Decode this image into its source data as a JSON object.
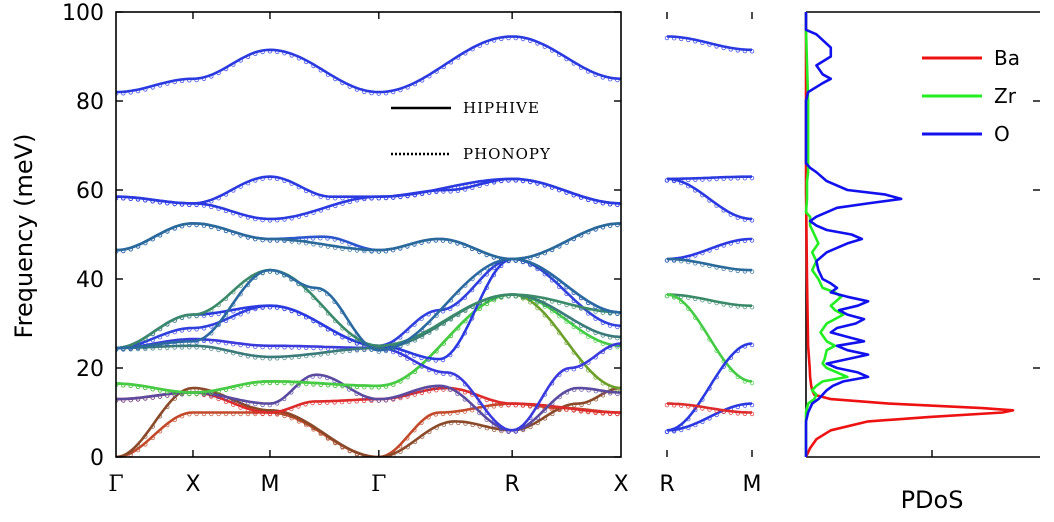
{
  "chart_data": [
    {
      "type": "line",
      "panel": "dispersion",
      "ylabel": "Frequency (meV)",
      "ylim": [
        0,
        100
      ],
      "yticks": [
        0,
        20,
        40,
        60,
        80,
        100
      ],
      "kpoints": [
        {
          "x": 0.0,
          "label": "Γ"
        },
        {
          "x": 1.0,
          "label": "X"
        },
        {
          "x": 2.0,
          "label": "M"
        },
        {
          "x": 3.414,
          "label": "Γ"
        },
        {
          "x": 5.146,
          "label": "R"
        },
        {
          "x": 6.56,
          "label": "X"
        }
      ],
      "legend": [
        {
          "name": "HIPHIVE",
          "style": "solid"
        },
        {
          "name": "PHONOPY",
          "style": "dotted"
        }
      ],
      "band_colors": {
        "low": "#ff1a1a",
        "mid": "#22cc22",
        "high": "#2222ee"
      },
      "branches": [
        {
          "nodes": [
            [
              0,
              0
            ],
            [
              1,
              10
            ],
            [
              2,
              10
            ],
            [
              3.414,
              0
            ],
            [
              4.2,
              10
            ],
            [
              5.146,
              12
            ],
            [
              5.8,
              11
            ],
            [
              6.56,
              10
            ]
          ],
          "color": "#c24a2a"
        },
        {
          "nodes": [
            [
              0,
              0
            ],
            [
              1,
              15.5
            ],
            [
              2,
              10.5
            ],
            [
              3.414,
              0
            ],
            [
              4.4,
              8
            ],
            [
              5.146,
              6
            ],
            [
              6.0,
              12
            ],
            [
              6.56,
              15.5
            ]
          ],
          "color": "#8a4a2a"
        },
        {
          "nodes": [
            [
              0,
              13
            ],
            [
              1,
              14.5
            ],
            [
              2,
              10
            ],
            [
              2.6,
              12.5
            ],
            [
              3.414,
              13
            ],
            [
              4.3,
              15.5
            ],
            [
              5.146,
              12
            ],
            [
              6.56,
              10
            ]
          ],
          "color": "#dd2a2a"
        },
        {
          "nodes": [
            [
              0,
              13
            ],
            [
              1,
              14.5
            ],
            [
              2,
              12
            ],
            [
              2.6,
              18.5
            ],
            [
              3.414,
              13
            ],
            [
              4.2,
              16
            ],
            [
              5.146,
              6
            ],
            [
              6.0,
              15.5
            ],
            [
              6.56,
              14.5
            ]
          ],
          "color": "#5a4aa0"
        },
        {
          "nodes": [
            [
              0,
              16.5
            ],
            [
              1,
              14.5
            ],
            [
              2,
              17
            ],
            [
              3.414,
              16
            ],
            [
              5.146,
              36.5
            ],
            [
              6.56,
              15.5
            ]
          ],
          "color": "#6aa02a"
        },
        {
          "nodes": [
            [
              0,
              16.5
            ],
            [
              1,
              14.5
            ],
            [
              2,
              17
            ],
            [
              3.414,
              16
            ],
            [
              5.146,
              36.5
            ],
            [
              6.56,
              25
            ]
          ],
          "color": "#44cc44"
        },
        {
          "nodes": [
            [
              0,
              24.5
            ],
            [
              1,
              26.5
            ],
            [
              2,
              25
            ],
            [
              3.414,
              24.5
            ],
            [
              4.3,
              19
            ],
            [
              5.146,
              6
            ],
            [
              5.9,
              20
            ],
            [
              6.56,
              25.5
            ]
          ],
          "color": "#3a3add"
        },
        {
          "nodes": [
            [
              0,
              24.5
            ],
            [
              1,
              25
            ],
            [
              2,
              22.5
            ],
            [
              3.414,
              24.5
            ],
            [
              5.146,
              36.5
            ],
            [
              6.56,
              27
            ]
          ],
          "color": "#3a7a7a"
        },
        {
          "nodes": [
            [
              0,
              24.5
            ],
            [
              1,
              29
            ],
            [
              2,
              34
            ],
            [
              3.414,
              25
            ],
            [
              4.2,
              33
            ],
            [
              5.146,
              44.5
            ],
            [
              6.56,
              29.5
            ]
          ],
          "color": "#3040dd"
        },
        {
          "nodes": [
            [
              0,
              24.5
            ],
            [
              1,
              32
            ],
            [
              2,
              34
            ],
            [
              3.414,
              25
            ],
            [
              4.2,
              22
            ],
            [
              5.146,
              44.5
            ],
            [
              6.56,
              32.5
            ]
          ],
          "color": "#2a3ae0"
        },
        {
          "nodes": [
            [
              0,
              24.5
            ],
            [
              1,
              32
            ],
            [
              2,
              42
            ],
            [
              3.414,
              25
            ],
            [
              5.146,
              36.5
            ],
            [
              6.56,
              32.5
            ]
          ],
          "color": "#3a8a6a"
        },
        {
          "nodes": [
            [
              0,
              24.5
            ],
            [
              1,
              26
            ],
            [
              2,
              42
            ],
            [
              2.6,
              38
            ],
            [
              3.414,
              24
            ],
            [
              5.146,
              44.5
            ],
            [
              6.56,
              32.5
            ]
          ],
          "color": "#2a6aa0"
        },
        {
          "nodes": [
            [
              0,
              46.5
            ],
            [
              1,
              52.5
            ],
            [
              2,
              49
            ],
            [
              2.7,
              49.5
            ],
            [
              3.414,
              46.5
            ],
            [
              4.2,
              49
            ],
            [
              5.146,
              44.5
            ],
            [
              6.56,
              52.5
            ]
          ],
          "color": "#2a55cc"
        },
        {
          "nodes": [
            [
              0,
              46.5
            ],
            [
              1,
              52.5
            ],
            [
              2,
              49
            ],
            [
              3.414,
              46.5
            ],
            [
              4.2,
              49
            ],
            [
              5.146,
              44.5
            ],
            [
              6.56,
              52.5
            ]
          ],
          "color": "#2a6a9a"
        },
        {
          "nodes": [
            [
              0,
              58.5
            ],
            [
              1,
              57
            ],
            [
              2,
              63
            ],
            [
              2.8,
              58.5
            ],
            [
              3.414,
              58.5
            ],
            [
              4.3,
              60
            ],
            [
              5.146,
              62.5
            ],
            [
              6.56,
              57
            ]
          ],
          "color": "#2a3ae0"
        },
        {
          "nodes": [
            [
              0,
              58.5
            ],
            [
              1,
              57
            ],
            [
              2,
              53.5
            ],
            [
              3.414,
              58.5
            ],
            [
              5.146,
              62.5
            ],
            [
              6.56,
              57
            ]
          ],
          "color": "#2a3ae0"
        },
        {
          "nodes": [
            [
              0,
              82
            ],
            [
              1,
              85
            ],
            [
              2,
              91.5
            ],
            [
              3.414,
              82
            ],
            [
              5.146,
              94.5
            ],
            [
              6.56,
              85
            ]
          ],
          "color": "#2a3ae0"
        }
      ],
      "inset_branches": [
        {
          "nodes": [
            [
              0,
              94.5
            ],
            [
              1,
              91.5
            ]
          ],
          "color": "#2a3ae0"
        },
        {
          "nodes": [
            [
              0,
              62.5
            ],
            [
              1,
              63
            ]
          ],
          "color": "#2a3ae0"
        },
        {
          "nodes": [
            [
              0,
              62.5
            ],
            [
              1,
              53.5
            ]
          ],
          "color": "#2a3ae0"
        },
        {
          "nodes": [
            [
              0,
              44.5
            ],
            [
              1,
              49
            ]
          ],
          "color": "#2a3ae0"
        },
        {
          "nodes": [
            [
              0,
              44.5
            ],
            [
              1,
              42
            ]
          ],
          "color": "#2a6a9a"
        },
        {
          "nodes": [
            [
              0,
              36.5
            ],
            [
              1,
              34
            ]
          ],
          "color": "#3a8a6a"
        },
        {
          "nodes": [
            [
              0,
              36.5
            ],
            [
              1,
              17
            ]
          ],
          "color": "#44cc44"
        },
        {
          "nodes": [
            [
              0,
              6
            ],
            [
              1,
              25.5
            ]
          ],
          "color": "#2a3ae0"
        },
        {
          "nodes": [
            [
              0,
              6
            ],
            [
              1,
              12
            ]
          ],
          "color": "#2a3ae0"
        },
        {
          "nodes": [
            [
              0,
              12
            ],
            [
              1,
              10
            ]
          ],
          "color": "#dd2a2a"
        }
      ]
    },
    {
      "type": "line",
      "panel": "inset",
      "kpoints": [
        {
          "x": 0,
          "label": "R"
        },
        {
          "x": 1,
          "label": "M"
        }
      ],
      "ylim": [
        0,
        100
      ]
    },
    {
      "type": "line",
      "panel": "pdos",
      "xlabel": "PDoS",
      "ylim": [
        0,
        100
      ],
      "series": [
        {
          "name": "Ba",
          "color": "#ee1111",
          "y": [
            0,
            2,
            4,
            6,
            8,
            9,
            10,
            10.5,
            11,
            12,
            13,
            14,
            15,
            16,
            18,
            20,
            25,
            40,
            60,
            100
          ],
          "v": [
            0,
            0.02,
            0.05,
            0.12,
            0.3,
            0.6,
            0.95,
            1.0,
            0.85,
            0.4,
            0.12,
            0.04,
            0.03,
            0.025,
            0.02,
            0.018,
            0.01,
            0.005,
            0,
            0
          ]
        },
        {
          "name": "Zr",
          "color": "#22ee22",
          "y": [
            0,
            10,
            12,
            13,
            14,
            15,
            16,
            17,
            18,
            19,
            20,
            21,
            22,
            24,
            25,
            26,
            28,
            30,
            32,
            33,
            34,
            36,
            37,
            38,
            40,
            42,
            44,
            46,
            48,
            50,
            52,
            54,
            55,
            58,
            62,
            64,
            80,
            96,
            100
          ],
          "v": [
            0,
            0,
            0.01,
            0.04,
            0.05,
            0.03,
            0.05,
            0.08,
            0.2,
            0.15,
            0.1,
            0.08,
            0.09,
            0.1,
            0.14,
            0.1,
            0.07,
            0.1,
            0.18,
            0.14,
            0.12,
            0.17,
            0.14,
            0.08,
            0.06,
            0.03,
            0.05,
            0.03,
            0.06,
            0.04,
            0.02,
            0.02,
            0.0,
            0.005,
            0.005,
            0.01,
            0.01,
            0.0,
            0
          ]
        },
        {
          "name": "O",
          "color": "#1111ee",
          "y": [
            0,
            8,
            10,
            12,
            13,
            14,
            15,
            16,
            17,
            18,
            19,
            20,
            21,
            22,
            23,
            24,
            25,
            26,
            27,
            28,
            29,
            30,
            31,
            32,
            33,
            34,
            35,
            36,
            37,
            38,
            39,
            40,
            42,
            44,
            46,
            48,
            49,
            50,
            51,
            52,
            53,
            54,
            56,
            57,
            58,
            59,
            60,
            62,
            64,
            65,
            66,
            80,
            82,
            84,
            85,
            86,
            88,
            90,
            92,
            95,
            96,
            100
          ],
          "v": [
            0,
            0,
            0.01,
            0.03,
            0.06,
            0.08,
            0.1,
            0.13,
            0.18,
            0.3,
            0.25,
            0.15,
            0.1,
            0.2,
            0.3,
            0.2,
            0.15,
            0.28,
            0.2,
            0.12,
            0.15,
            0.24,
            0.28,
            0.2,
            0.16,
            0.25,
            0.3,
            0.2,
            0.12,
            0.15,
            0.12,
            0.08,
            0.06,
            0.05,
            0.1,
            0.2,
            0.27,
            0.22,
            0.1,
            0.05,
            0.02,
            0.05,
            0.15,
            0.3,
            0.46,
            0.38,
            0.2,
            0.1,
            0.05,
            0.02,
            0,
            0,
            0.01,
            0.08,
            0.12,
            0.08,
            0.05,
            0.12,
            0.12,
            0.05,
            0.0,
            0
          ]
        }
      ],
      "legend_position": "top-right"
    }
  ]
}
